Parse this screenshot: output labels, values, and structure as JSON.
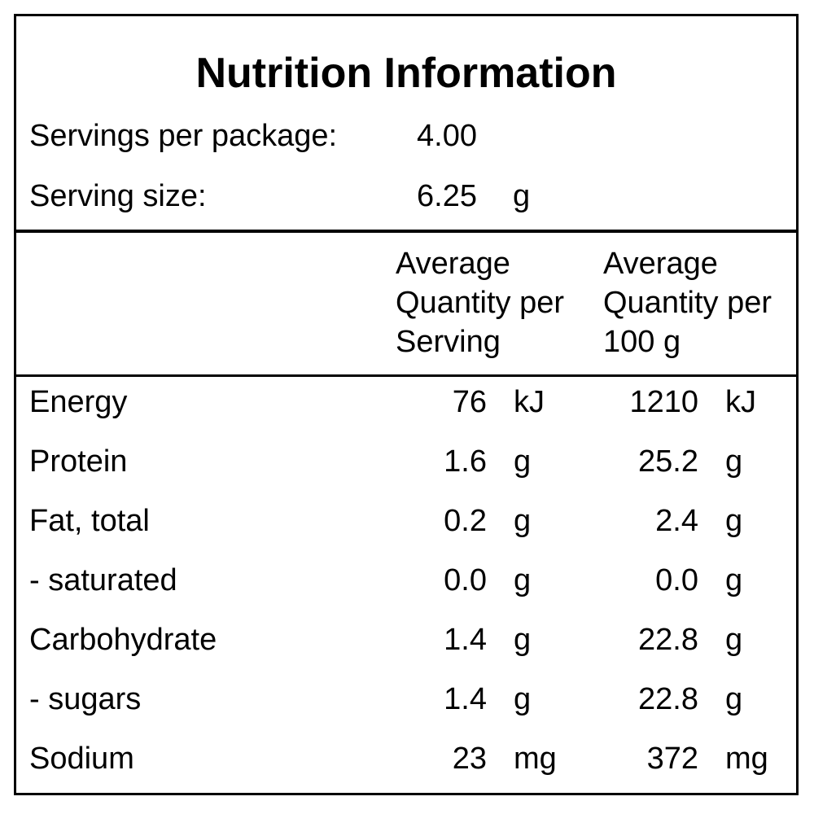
{
  "title": "Nutrition Information",
  "servings": [
    {
      "label": "Servings per package:",
      "value": "4.00"
    },
    {
      "label": "Serving size:",
      "value": "6.25",
      "unit": "g"
    }
  ],
  "columns": [
    "Average Quantity per Serving",
    "Average Quantity per 100 g"
  ],
  "rows": [
    {
      "nutrient": "Energy",
      "per_serving": "76",
      "per_serving_unit": "kJ",
      "per_100g": "1210",
      "per_100g_unit": "kJ"
    },
    {
      "nutrient": "Protein",
      "per_serving": "1.6",
      "per_serving_unit": "g",
      "per_100g": "25.2",
      "per_100g_unit": "g"
    },
    {
      "nutrient": "Fat, total",
      "per_serving": "0.2",
      "per_serving_unit": "g",
      "per_100g": "2.4",
      "per_100g_unit": "g"
    },
    {
      "nutrient": "- saturated",
      "per_serving": "0.0",
      "per_serving_unit": "g",
      "per_100g": "0.0",
      "per_100g_unit": "g"
    },
    {
      "nutrient": "Carbohydrate",
      "per_serving": "1.4",
      "per_serving_unit": "g",
      "per_100g": "22.8",
      "per_100g_unit": "g"
    },
    {
      "nutrient": "- sugars",
      "per_serving": "1.4",
      "per_serving_unit": "g",
      "per_100g": "22.8",
      "per_100g_unit": "g"
    },
    {
      "nutrient": "Sodium",
      "per_serving": "23",
      "per_serving_unit": "mg",
      "per_100g": "372",
      "per_100g_unit": "mg"
    }
  ]
}
